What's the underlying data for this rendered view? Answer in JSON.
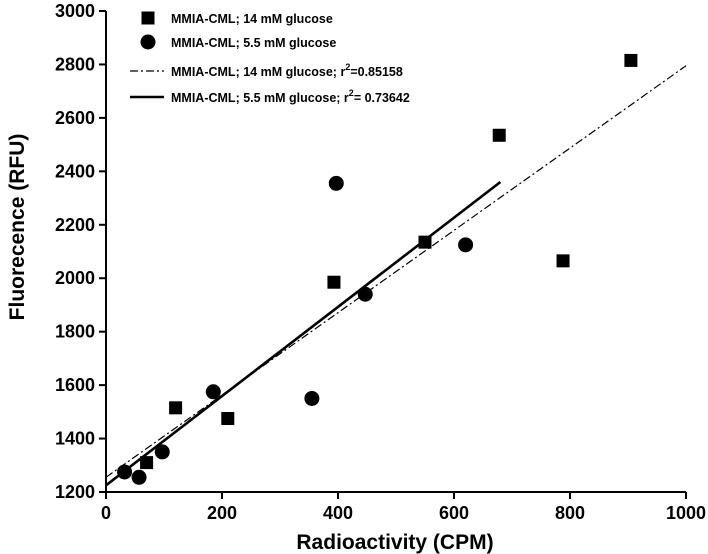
{
  "chart_data": {
    "type": "scatter",
    "title": "",
    "xlabel": "Radioactivity (CPM)",
    "ylabel": "Fluorecence (RFU)",
    "xlim": [
      0,
      1000
    ],
    "ylim": [
      1200,
      3000
    ],
    "x_ticks": [
      0,
      200,
      400,
      600,
      800,
      1000
    ],
    "y_ticks": [
      1200,
      1400,
      1600,
      1800,
      2000,
      2200,
      2400,
      2600,
      2800,
      3000
    ],
    "grid": false,
    "legend_position": "top-left",
    "series": [
      {
        "name": "MMIA-CML; 14 mM glucose",
        "marker": "square",
        "points": [
          {
            "x": 70,
            "y": 1310
          },
          {
            "x": 120,
            "y": 1515
          },
          {
            "x": 210,
            "y": 1475
          },
          {
            "x": 393,
            "y": 1985
          },
          {
            "x": 550,
            "y": 2135
          },
          {
            "x": 678,
            "y": 2535
          },
          {
            "x": 788,
            "y": 2065
          },
          {
            "x": 905,
            "y": 2815
          }
        ]
      },
      {
        "name": "MMIA-CML; 5.5 mM glucose",
        "marker": "circle",
        "points": [
          {
            "x": 32,
            "y": 1275
          },
          {
            "x": 57,
            "y": 1255
          },
          {
            "x": 97,
            "y": 1350
          },
          {
            "x": 185,
            "y": 1575
          },
          {
            "x": 355,
            "y": 1550
          },
          {
            "x": 397,
            "y": 2355
          },
          {
            "x": 447,
            "y": 1940
          },
          {
            "x": 620,
            "y": 2125
          }
        ]
      }
    ],
    "fits": [
      {
        "name": "MMIA-CML; 14 mM glucose; r",
        "sup": "2",
        "r2_text": "=0.85158",
        "style": "dash-dot",
        "x_range": [
          0,
          1000
        ],
        "y_range": [
          1255,
          2795
        ]
      },
      {
        "name": "MMIA-CML; 5.5 mM glucose; r",
        "sup": "2",
        "r2_text": "= 0.73642",
        "style": "solid",
        "x_range": [
          0,
          680
        ],
        "y_range": [
          1225,
          2360
        ]
      }
    ]
  }
}
